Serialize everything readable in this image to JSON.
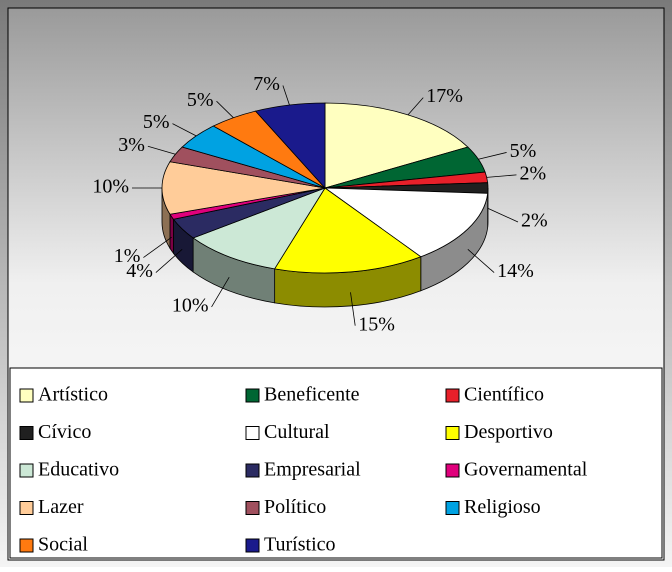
{
  "chart_data": {
    "type": "pie",
    "three_d": true,
    "legend": "bottom",
    "categories": [
      "Artístico",
      "Beneficente",
      "Científico",
      "Cívico",
      "Cultural",
      "Desportivo",
      "Educativo",
      "Empresarial",
      "Governamental",
      "Lazer",
      "Político",
      "Religioso",
      "Social",
      "Turístico"
    ],
    "values": [
      17,
      5,
      2,
      2,
      14,
      15,
      10,
      4,
      1,
      10,
      3,
      5,
      5,
      7
    ],
    "value_labels": [
      "17%",
      "5%",
      "2%",
      "2%",
      "14%",
      "15%",
      "10%",
      "4%",
      "1%",
      "10%",
      "3%",
      "5%",
      "5%",
      "7%"
    ],
    "colors": [
      "#ffffc0",
      "#006633",
      "#e8202a",
      "#202020",
      "#ffffff",
      "#ffff00",
      "#cce8d6",
      "#2b2b62",
      "#e0007c",
      "#ffcc99",
      "#a0505e",
      "#00a2e2",
      "#ff7a10",
      "#1a1a8c"
    ]
  }
}
